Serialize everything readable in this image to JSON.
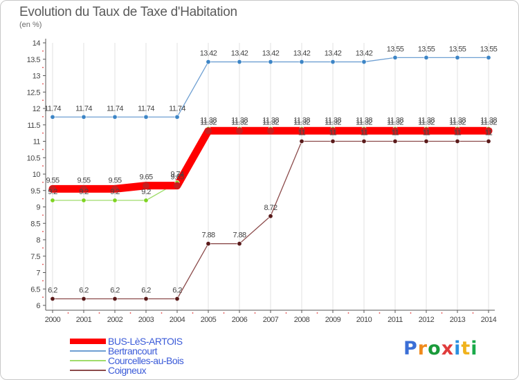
{
  "colors": {
    "axis": "#555555",
    "grid": "#e0e0e0",
    "label": "#444444",
    "legend_text": "#3a5ad8",
    "logo": [
      "#3b6fd6",
      "#f08a1c",
      "#1a9a3a",
      "#e03b3b",
      "#2a8fe0",
      "#f0b21c",
      "#1aaa4a"
    ]
  },
  "logo_text": "Proxiti",
  "chart_data": {
    "type": "line",
    "title": "Evolution du Taux de Taxe d'Habitation",
    "subtitle": "(en %)",
    "xlabel": "",
    "ylabel": "(en %)",
    "x": [
      "2000",
      "2001",
      "2002",
      "2003",
      "2004",
      "2005",
      "2006",
      "2007",
      "2008",
      "2009",
      "2010",
      "2011",
      "2012",
      "2013",
      "2014"
    ],
    "ylim": [
      6,
      14
    ],
    "yticks": [
      "6",
      "6.5",
      "7",
      "7.5",
      "8",
      "8.5",
      "9",
      "9.5",
      "10",
      "10.5",
      "11",
      "11.5",
      "12",
      "12.5",
      "13",
      "13.5",
      "14"
    ],
    "legend_position": "bottom-left",
    "series": [
      {
        "name": "BUS-LèS-ARTOIS",
        "color": "#ff0000",
        "marker": "#c81e1e",
        "thick": true,
        "values": [
          9.55,
          9.55,
          9.55,
          9.65,
          9.65,
          11.32,
          11.32,
          11.32,
          11.32,
          11.32,
          11.32,
          11.32,
          11.32,
          11.32,
          11.32
        ],
        "labels": [
          "9.55",
          "9.55",
          "9.55",
          "9.65",
          "9.65",
          "11.32",
          "11.32",
          "11.32",
          "11.32",
          "11.32",
          "11.32",
          "11.32",
          "11.32",
          "11.32",
          "11.32"
        ]
      },
      {
        "name": "Bertrancourt",
        "color": "#6e9fd2",
        "marker": "#3d85c6",
        "thick": false,
        "values": [
          11.74,
          11.74,
          11.74,
          11.74,
          11.74,
          13.42,
          13.42,
          13.42,
          13.42,
          13.42,
          13.42,
          13.55,
          13.55,
          13.55,
          13.55
        ],
        "labels": [
          "11.74",
          "11.74",
          "11.74",
          "11.74",
          "11.74",
          "13.42",
          "13.42",
          "13.42",
          "13.42",
          "13.42",
          "13.42",
          "13.55",
          "13.55",
          "13.55",
          "13.55"
        ]
      },
      {
        "name": "Courcelles-au-Bois",
        "color": "#9fdc6a",
        "marker": "#7ed321",
        "thick": false,
        "values": [
          9.2,
          9.2,
          9.2,
          9.2,
          9.74,
          11.38,
          11.38,
          11.38,
          11.38,
          11.38,
          11.38,
          11.38,
          11.38,
          11.38,
          11.38
        ],
        "labels": [
          "9.2",
          "9.2",
          "9.2",
          "9.2",
          "9.74",
          "11.38",
          "11.38",
          "11.38",
          "11.38",
          "11.38",
          "11.38",
          "11.38",
          "11.38",
          "11.38",
          "11.38"
        ]
      },
      {
        "name": "Coigneux",
        "color": "#8b4a4a",
        "marker": "#5a1a1a",
        "thick": false,
        "values": [
          6.2,
          6.2,
          6.2,
          6.2,
          6.2,
          7.88,
          7.88,
          8.72,
          11,
          11,
          11,
          11,
          11,
          11,
          11
        ],
        "labels": [
          "6.2",
          "6.2",
          "6.2",
          "6.2",
          "6.2",
          "7.88",
          "7.88",
          "8.72",
          "11",
          "11",
          "11",
          "11",
          "11",
          "11",
          "11"
        ]
      }
    ]
  }
}
